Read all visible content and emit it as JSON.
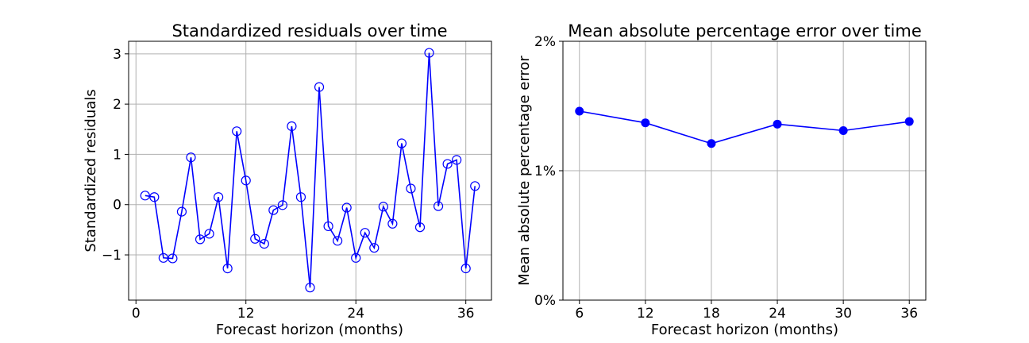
{
  "colors": {
    "series": "#0000ff",
    "grid": "#b0b0b0",
    "axis": "#000000"
  },
  "chart_data": [
    {
      "type": "line",
      "title": "Standardized residuals over time",
      "xlabel": "Forecast horizon (months)",
      "ylabel": "Standardized residuals",
      "xlim": [
        -0.8,
        38.8
      ],
      "ylim": [
        -1.9,
        3.25
      ],
      "xticks": [
        0,
        12,
        24,
        36
      ],
      "xtick_labels": [
        "0",
        "12",
        "24",
        "36"
      ],
      "yticks": [
        -1,
        0,
        1,
        2,
        3
      ],
      "ytick_labels": [
        "−1",
        "0",
        "1",
        "2",
        "3"
      ],
      "grid": true,
      "marker": "hollow-circle",
      "x": [
        1,
        2,
        3,
        4,
        5,
        6,
        7,
        8,
        9,
        10,
        11,
        12,
        13,
        14,
        15,
        16,
        17,
        18,
        19,
        20,
        21,
        22,
        23,
        24,
        25,
        26,
        27,
        28,
        29,
        30,
        31,
        32,
        33,
        34,
        35,
        36,
        37
      ],
      "series": [
        {
          "values": [
            0.18,
            0.15,
            -1.06,
            -1.07,
            -0.14,
            0.94,
            -0.69,
            -0.58,
            0.15,
            -1.27,
            1.46,
            0.48,
            -0.68,
            -0.78,
            -0.11,
            -0.01,
            1.56,
            0.15,
            -1.65,
            2.34,
            -0.43,
            -0.72,
            -0.06,
            -1.06,
            -0.56,
            -0.86,
            -0.04,
            -0.38,
            1.22,
            0.32,
            -0.45,
            3.02,
            -0.03,
            0.81,
            0.89,
            -1.27,
            0.37
          ]
        }
      ]
    },
    {
      "type": "line",
      "title": "Mean absolute percentage error over time",
      "xlabel": "Forecast horizon (months)",
      "ylabel": "Mean absolute percentage error",
      "xlim": [
        4.5,
        37.5
      ],
      "ylim": [
        0,
        2
      ],
      "xticks": [
        6,
        12,
        18,
        24,
        30,
        36
      ],
      "xtick_labels": [
        "6",
        "12",
        "18",
        "24",
        "30",
        "36"
      ],
      "yticks": [
        0,
        1,
        2
      ],
      "ytick_labels": [
        "0%",
        "1%",
        "2%"
      ],
      "grid": true,
      "marker": "filled-circle",
      "x": [
        6,
        12,
        18,
        24,
        30,
        36
      ],
      "series": [
        {
          "values": [
            1.46,
            1.37,
            1.21,
            1.36,
            1.31,
            1.38
          ]
        }
      ]
    }
  ]
}
